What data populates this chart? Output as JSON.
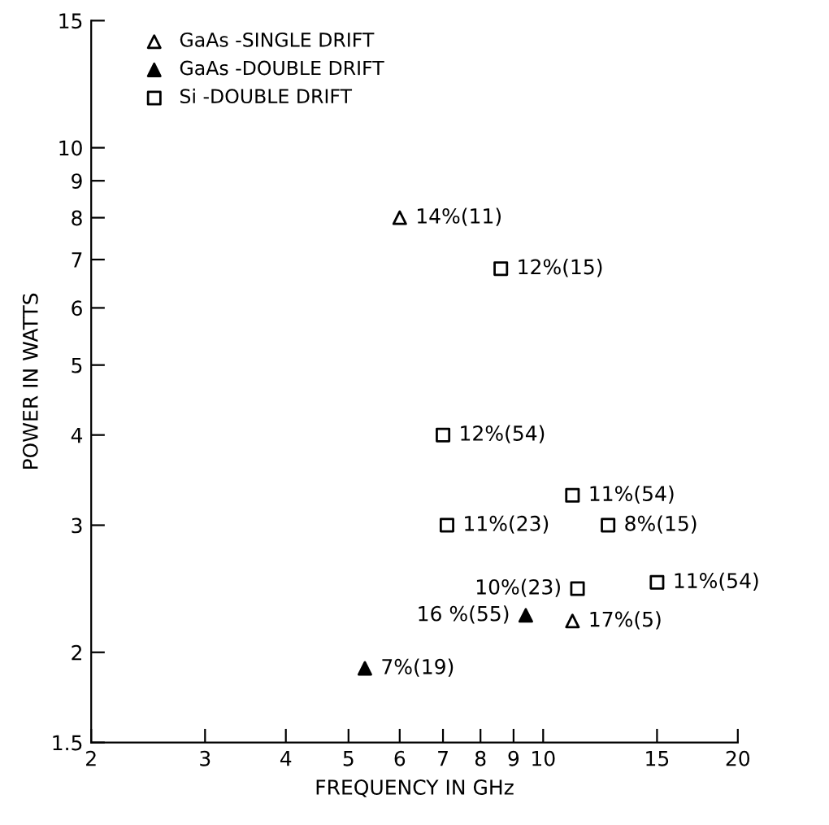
{
  "chart_data": {
    "type": "scatter",
    "xlabel": "FREQUENCY IN GHz",
    "ylabel": "POWER IN WATTS",
    "log": "xy",
    "xlim": [
      2,
      20
    ],
    "ylim": [
      1.5,
      15
    ],
    "xticks": [
      2,
      3,
      4,
      5,
      6,
      7,
      8,
      9,
      10,
      15,
      20
    ],
    "yticks": [
      1.5,
      2,
      3,
      4,
      5,
      6,
      7,
      8,
      9,
      10,
      15
    ],
    "grid": false,
    "legend": "top left",
    "series": [
      {
        "name": "GaAs -SINGLE DRIFT",
        "color": "#ffffff",
        "marker": "triangle",
        "x": [
          6,
          11.1
        ],
        "values": [
          8,
          2.21
        ]
      },
      {
        "name": "GaAs -DOUBLE DRIFT",
        "color": "#000000",
        "marker": "triangle",
        "x": [
          9.4,
          5.3
        ],
        "values": [
          2.25,
          1.9
        ]
      },
      {
        "name": "Si -DOUBLE DRIFT",
        "color": "#ffffff",
        "marker": "square",
        "x": [
          8.6,
          7,
          11.1,
          7.1,
          12.6,
          11.3,
          15
        ],
        "values": [
          6.8,
          4,
          3.3,
          3,
          3,
          2.45,
          2.5
        ]
      }
    ],
    "annotations": [
      {
        "text": "14%(11)",
        "x": 6,
        "y": 8
      },
      {
        "text": "17%(5)",
        "x": 11.1,
        "y": 2.21
      },
      {
        "text": "16 %(55)",
        "x": 9.4,
        "y": 2.25
      },
      {
        "text": "7%(19)",
        "x": 5.3,
        "y": 1.9
      },
      {
        "text": "12%(15)",
        "x": 8.6,
        "y": 6.8
      },
      {
        "text": "12%(54)",
        "x": 7,
        "y": 4
      },
      {
        "text": "11%(54)",
        "x": 11.1,
        "y": 3.3
      },
      {
        "text": "11%(23)",
        "x": 7.1,
        "y": 3
      },
      {
        "text": "8%(15)",
        "x": 12.6,
        "y": 3
      },
      {
        "text": "10%(23)",
        "x": 11.3,
        "y": 2.45
      },
      {
        "text": "11%(54)",
        "x": 15,
        "y": 2.5
      }
    ]
  }
}
